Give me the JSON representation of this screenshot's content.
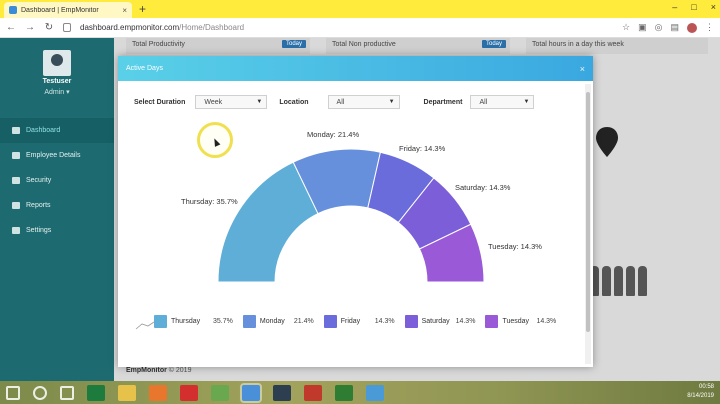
{
  "browser": {
    "tab_title": "Dashboard | EmpMonitor",
    "tab_close": "×",
    "new_tab": "+",
    "url_host": "dashboard.empmonitor.com",
    "url_path": "/Home/Dashboard",
    "window_controls": [
      "–",
      "□",
      "×"
    ]
  },
  "sidebar": {
    "username": "Testuser",
    "role": "Admin ▾",
    "items": [
      {
        "label": "Dashboard",
        "icon": "home-icon"
      },
      {
        "label": "Employee Details",
        "icon": "users-icon"
      },
      {
        "label": "Security",
        "icon": "shield-icon"
      },
      {
        "label": "Reports",
        "icon": "chart-icon"
      },
      {
        "label": "Settings",
        "icon": "gear-icon"
      }
    ]
  },
  "cards": [
    {
      "label": "Total Productivity",
      "badge": "Today"
    },
    {
      "label": "Total Non productive",
      "badge": "Today"
    },
    {
      "label": "Total hours in a day this week",
      "badge": ""
    }
  ],
  "footer": {
    "brand": "EmpMonitor",
    "text": "© 2019"
  },
  "modal": {
    "title": "Active Days",
    "close": "×",
    "filters": {
      "duration_label": "Select Duration",
      "duration_value": "Week",
      "location_label": "Location",
      "location_value": "All",
      "department_label": "Department",
      "department_value": "All"
    }
  },
  "chart_data": {
    "type": "pie",
    "style": "semi-donut",
    "categories": [
      "Thursday",
      "Monday",
      "Friday",
      "Saturday",
      "Tuesday"
    ],
    "values": [
      35.7,
      21.4,
      14.3,
      14.3,
      14.3
    ],
    "labels": [
      "Thursday: 35.7%",
      "Monday: 21.4%",
      "Friday: 14.3%",
      "Saturday: 14.3%",
      "Tuesday: 14.3%"
    ],
    "legend_values": [
      "35.7%",
      "21.4%",
      "14.3%",
      "14.3%",
      "14.3%"
    ],
    "colors": [
      "#5eaed8",
      "#6690dc",
      "#6a6cdc",
      "#7b5ed8",
      "#9a5ad8"
    ],
    "legend_position": "bottom"
  },
  "taskbar": {
    "time": "00:58",
    "date": "8/14/2019",
    "icons": [
      "windows-icon",
      "search-icon",
      "task-view-icon",
      "excel-icon",
      "files-icon",
      "firefox-icon",
      "opera-icon",
      "notes-icon",
      "chrome-icon",
      "app-icon",
      "app2-icon",
      "upwork-icon",
      "app3-icon"
    ],
    "colors": [
      "#ffffff",
      "#ffffff",
      "#ffffff",
      "#1e7b3e",
      "#e6c24a",
      "#e8762d",
      "#d32f2f",
      "#6aa84f",
      "#4a90d9",
      "#2c3e50",
      "#c0392b",
      "#2e7d32",
      "#4a9ad8"
    ]
  }
}
